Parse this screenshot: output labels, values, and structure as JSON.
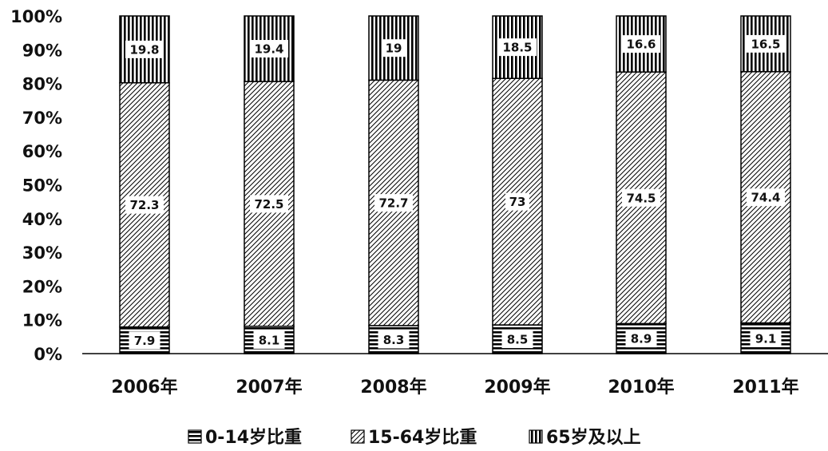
{
  "chart_data": {
    "type": "bar",
    "stacked": true,
    "percent_stacked": true,
    "categories": [
      "2006年",
      "2007年",
      "2008年",
      "2009年",
      "2010年",
      "2011年"
    ],
    "series": [
      {
        "name": "0-14岁比重",
        "pattern": "horizontal-lines",
        "values": [
          7.9,
          8.1,
          8.3,
          8.5,
          8.9,
          9.1
        ]
      },
      {
        "name": "15-64岁比重",
        "pattern": "diagonal-lines",
        "values": [
          72.3,
          72.5,
          72.7,
          73,
          74.5,
          74.4
        ]
      },
      {
        "name": "65岁及以上",
        "pattern": "vertical-lines",
        "values": [
          19.8,
          19.4,
          19,
          18.5,
          16.6,
          16.5
        ]
      }
    ],
    "yticks": [
      "0%",
      "10%",
      "20%",
      "30%",
      "40%",
      "50%",
      "60%",
      "70%",
      "80%",
      "90%",
      "100%"
    ],
    "ylim": [
      0,
      100
    ],
    "grid": false,
    "legend_position": "bottom",
    "colors": {
      "ink": "#000000",
      "background": "#ffffff"
    }
  }
}
